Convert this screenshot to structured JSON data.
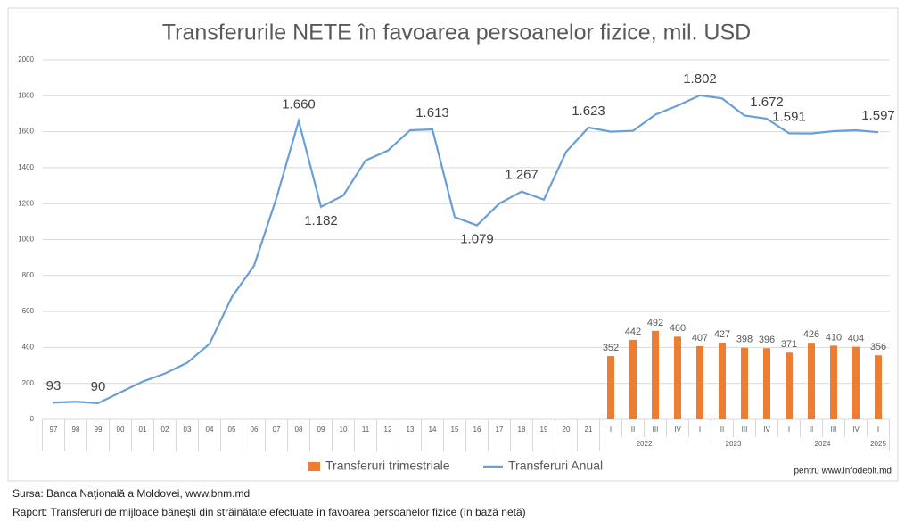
{
  "chart_data": {
    "type": "combo",
    "title": "Transferurile NETE în favoarea persoanelor fizice, mil. USD",
    "categories": [
      "97",
      "98",
      "99",
      "00",
      "01",
      "02",
      "03",
      "04",
      "05",
      "06",
      "07",
      "08",
      "09",
      "10",
      "11",
      "12",
      "13",
      "14",
      "15",
      "16",
      "17",
      "18",
      "19",
      "20",
      "21",
      "I",
      "II",
      "III",
      "IV",
      "I",
      "II",
      "III",
      "IV",
      "I",
      "II",
      "III",
      "IV",
      "I"
    ],
    "x_groups": [
      {
        "label": "2022",
        "span": 4
      },
      {
        "label": "2023",
        "span": 4
      },
      {
        "label": "2024",
        "span": 4
      },
      {
        "label": "2025",
        "span": 1
      }
    ],
    "series": [
      {
        "name": "Transferuri trimestriale",
        "type": "bar",
        "color": "#ed7d31",
        "values": [
          null,
          null,
          null,
          null,
          null,
          null,
          null,
          null,
          null,
          null,
          null,
          null,
          null,
          null,
          null,
          null,
          null,
          null,
          null,
          null,
          null,
          null,
          null,
          null,
          null,
          352,
          442,
          492,
          460,
          407,
          427,
          398,
          396,
          371,
          426,
          410,
          404,
          356
        ]
      },
      {
        "name": "Transferuri Anual",
        "type": "line",
        "color": "#6a9fd6",
        "values": [
          93,
          98,
          90,
          150,
          210,
          255,
          315,
          420,
          680,
          855,
          1230,
          1660,
          1182,
          1245,
          1440,
          1495,
          1608,
          1613,
          1125,
          1079,
          1200,
          1267,
          1222,
          1488,
          1623,
          1600,
          1605,
          1695,
          1745,
          1802,
          1785,
          1690,
          1672,
          1591,
          1590,
          1603,
          1608,
          1597
        ],
        "value_labels": [
          "93",
          null,
          "90",
          null,
          null,
          null,
          null,
          null,
          null,
          null,
          null,
          "1.660",
          "1.182",
          null,
          null,
          null,
          null,
          "1.613",
          null,
          "1.079",
          null,
          "1.267",
          null,
          null,
          "1.623",
          null,
          null,
          null,
          null,
          "1.802",
          null,
          null,
          "1.672",
          "1.591",
          null,
          null,
          null,
          "1.597"
        ]
      }
    ],
    "ylim": [
      0,
      2000
    ],
    "yticks": [
      0,
      200,
      400,
      600,
      800,
      1000,
      1200,
      1400,
      1600,
      1800,
      2000
    ],
    "grid": true,
    "credit": "pentru www.infodebit.md"
  },
  "footer": [
    "Sursa: Banca Naţională a Moldovei, www.bnm.md",
    "Raport: Transferuri de mijloace băneşti din străinătate efectuate în favoarea persoanelor fizice (în bază netă)"
  ]
}
